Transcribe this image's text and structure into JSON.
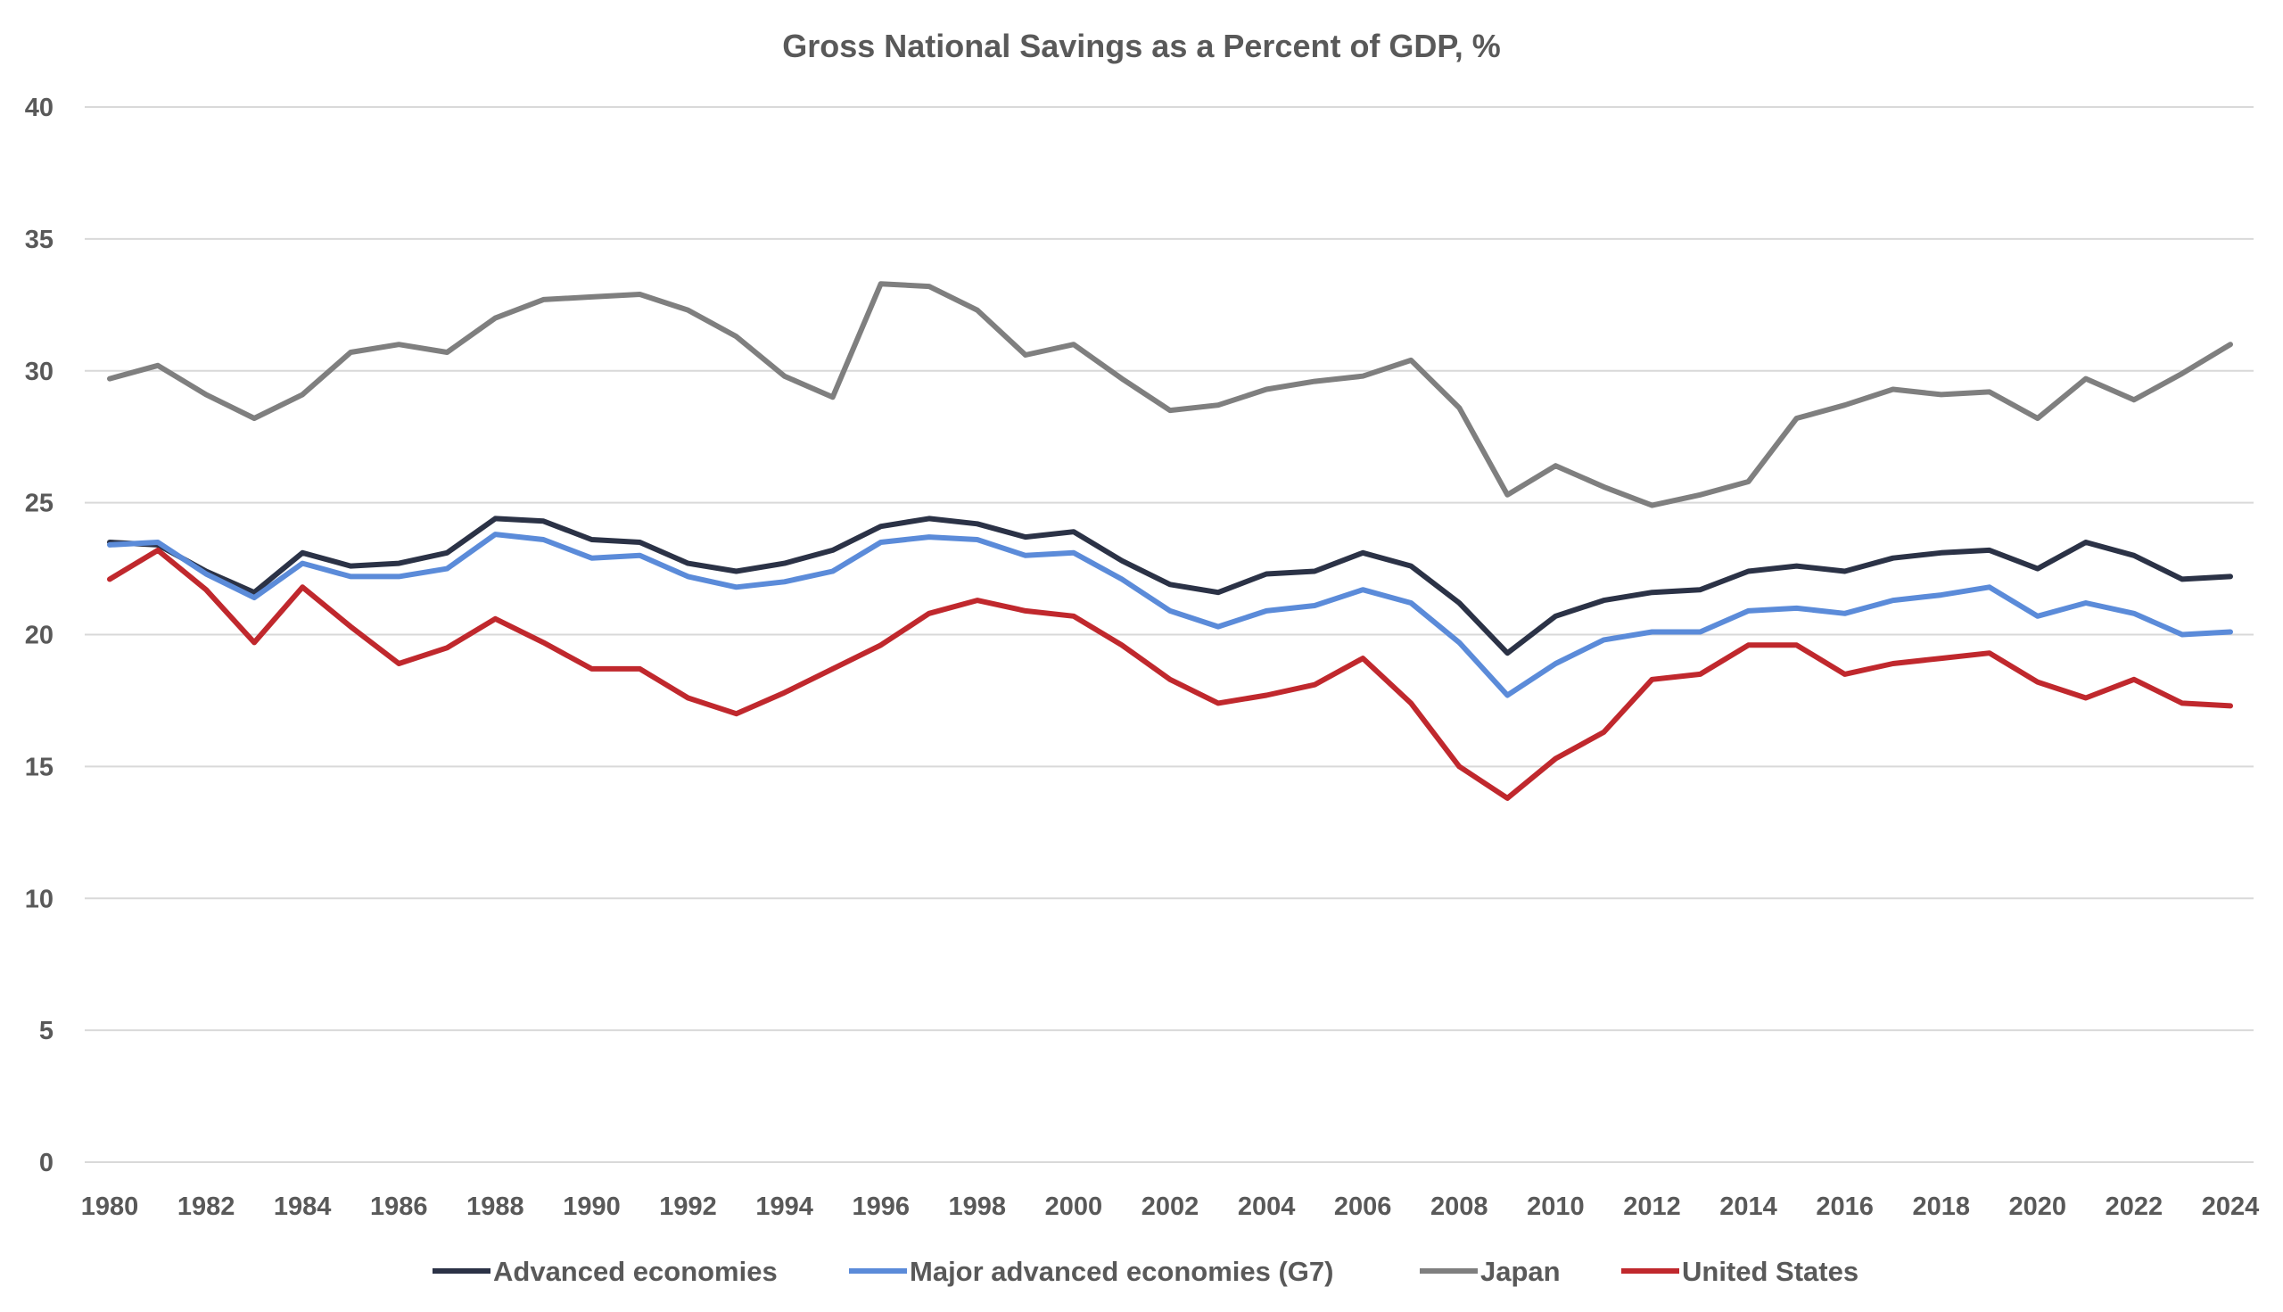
{
  "chart_data": {
    "type": "line",
    "title": "Gross National Savings as a Percent of GDP, %",
    "xlabel": "",
    "ylabel": "",
    "ylim": [
      0,
      40
    ],
    "yticks": [
      "0",
      "5",
      "10",
      "15",
      "20",
      "25",
      "30",
      "35",
      "40"
    ],
    "xticks": [
      "1980",
      "1982",
      "1984",
      "1986",
      "1988",
      "1990",
      "1992",
      "1994",
      "1996",
      "1998",
      "2000",
      "2002",
      "2004",
      "2006",
      "2008",
      "2010",
      "2012",
      "2014",
      "2016",
      "2018",
      "2020",
      "2022",
      "2024"
    ],
    "grid": true,
    "legend_position": "bottom",
    "x": [
      1980,
      1981,
      1982,
      1983,
      1984,
      1985,
      1986,
      1987,
      1988,
      1989,
      1990,
      1991,
      1992,
      1993,
      1994,
      1995,
      1996,
      1997,
      1998,
      1999,
      2000,
      2001,
      2002,
      2003,
      2004,
      2005,
      2006,
      2007,
      2008,
      2009,
      2010,
      2011,
      2012,
      2013,
      2014,
      2015,
      2016,
      2017,
      2018,
      2019,
      2020,
      2021,
      2022,
      2023,
      2024
    ],
    "series": [
      {
        "name": "Advanced economies",
        "color": "#2b3246",
        "values": [
          23.5,
          23.4,
          22.4,
          21.6,
          23.1,
          22.6,
          22.7,
          23.1,
          24.4,
          24.3,
          23.6,
          23.5,
          22.7,
          22.4,
          22.7,
          23.2,
          24.1,
          24.4,
          24.2,
          23.7,
          23.9,
          22.8,
          21.9,
          21.6,
          22.3,
          22.4,
          23.1,
          22.6,
          21.2,
          19.3,
          20.7,
          21.3,
          21.6,
          21.7,
          22.4,
          22.6,
          22.4,
          22.9,
          23.1,
          23.2,
          22.5,
          23.5,
          23.0,
          22.1,
          22.2
        ]
      },
      {
        "name": "Major advanced economies (G7)",
        "color": "#5b8bd9",
        "values": [
          23.4,
          23.5,
          22.3,
          21.4,
          22.7,
          22.2,
          22.2,
          22.5,
          23.8,
          23.6,
          22.9,
          23.0,
          22.2,
          21.8,
          22.0,
          22.4,
          23.5,
          23.7,
          23.6,
          23.0,
          23.1,
          22.1,
          20.9,
          20.3,
          20.9,
          21.1,
          21.7,
          21.2,
          19.7,
          17.7,
          18.9,
          19.8,
          20.1,
          20.1,
          20.9,
          21.0,
          20.8,
          21.3,
          21.5,
          21.8,
          20.7,
          21.2,
          20.8,
          20.0,
          20.1
        ]
      },
      {
        "name": "Japan",
        "color": "#7f7f7f",
        "values": [
          29.7,
          30.2,
          29.1,
          28.2,
          29.1,
          30.7,
          31.0,
          30.7,
          32.0,
          32.7,
          32.8,
          32.9,
          32.3,
          31.3,
          29.8,
          29.0,
          33.3,
          33.2,
          32.3,
          30.6,
          31.0,
          29.7,
          28.5,
          28.7,
          29.3,
          29.6,
          29.8,
          30.4,
          28.6,
          25.3,
          26.4,
          25.6,
          24.9,
          25.3,
          25.8,
          28.2,
          28.7,
          29.3,
          29.1,
          29.2,
          28.2,
          29.7,
          28.9,
          29.9,
          31.0
        ]
      },
      {
        "name": "United States",
        "color": "#c0282d",
        "values": [
          22.1,
          23.2,
          21.7,
          19.7,
          21.8,
          20.3,
          18.9,
          19.5,
          20.6,
          19.7,
          18.7,
          18.7,
          17.6,
          17.0,
          17.8,
          18.7,
          19.6,
          20.8,
          21.3,
          20.9,
          20.7,
          19.6,
          18.3,
          17.4,
          17.7,
          18.1,
          19.1,
          17.4,
          15.0,
          13.8,
          15.3,
          16.3,
          18.3,
          18.5,
          19.6,
          19.6,
          18.5,
          18.9,
          19.1,
          19.3,
          18.2,
          17.6,
          18.3,
          17.4,
          17.3
        ]
      }
    ]
  }
}
